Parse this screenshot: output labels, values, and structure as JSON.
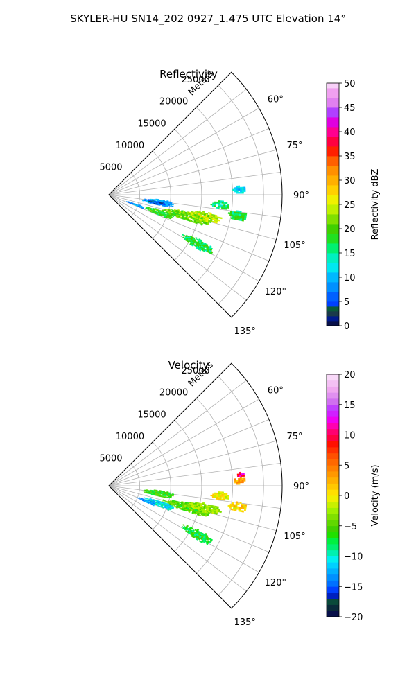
{
  "figure": {
    "suptitle": "SKYLER-HU  SN14_202  0927_1.475 UTC Elevation 14°"
  },
  "chart_data": [
    {
      "type": "heatmap",
      "title": "Reflectivity",
      "projection": "polar-sector",
      "radial_axis_label": "Meters",
      "radial_ticks": [
        "5000",
        "10000",
        "15000",
        "20000",
        "25000"
      ],
      "radial_tick_values": [
        5000,
        10000,
        15000,
        20000,
        25000
      ],
      "rlim": [
        0,
        28000
      ],
      "azimuth_ticks": [
        "60°",
        "75°",
        "90°",
        "105°",
        "120°",
        "135°"
      ],
      "azimuth_tick_values": [
        60,
        75,
        90,
        105,
        120,
        135
      ],
      "azimuth_range_deg": [
        45,
        135
      ],
      "grid": true,
      "colorbar": {
        "label": "Reflectivity dBZ",
        "min": 0,
        "max": 50,
        "ticks": [
          0,
          5,
          10,
          15,
          20,
          25,
          30,
          35,
          40,
          45,
          50
        ],
        "tick_labels": [
          "0",
          "5",
          "10",
          "15",
          "20",
          "25",
          "30",
          "35",
          "40",
          "45",
          "50"
        ]
      },
      "echo_regions": [
        {
          "az": [
            95,
            102
          ],
          "r": [
            5500,
            10500
          ],
          "value": 9
        },
        {
          "az": [
            97,
            101
          ],
          "r": [
            6500,
            9000
          ],
          "value": 5
        },
        {
          "az": [
            102,
            108
          ],
          "r": [
            9000,
            17000
          ],
          "value": 21
        },
        {
          "az": [
            106,
            112
          ],
          "r": [
            6000,
            11000
          ],
          "value": 19
        },
        {
          "az": [
            100,
            105
          ],
          "r": [
            13000,
            18500
          ],
          "value": 24
        },
        {
          "az": [
            116,
            121
          ],
          "r": [
            13500,
            19000
          ],
          "value": 17
        },
        {
          "az": [
            93,
            97
          ],
          "r": [
            16500,
            19500
          ],
          "value": 16
        },
        {
          "az": [
            97,
            101
          ],
          "r": [
            19500,
            22500
          ],
          "value": 17
        },
        {
          "az": [
            86,
            89
          ],
          "r": [
            20000,
            22000
          ],
          "value": 12
        },
        {
          "az": [
            108,
            112
          ],
          "r": [
            3000,
            6000
          ],
          "value": 8
        }
      ]
    },
    {
      "type": "heatmap",
      "title": "Velocity",
      "projection": "polar-sector",
      "radial_axis_label": "Meters",
      "radial_ticks": [
        "5000",
        "10000",
        "15000",
        "20000",
        "25000"
      ],
      "radial_tick_values": [
        5000,
        10000,
        15000,
        20000,
        25000
      ],
      "rlim": [
        0,
        28000
      ],
      "azimuth_ticks": [
        "60°",
        "75°",
        "90°",
        "105°",
        "120°",
        "135°"
      ],
      "azimuth_tick_values": [
        60,
        75,
        90,
        105,
        120,
        135
      ],
      "azimuth_range_deg": [
        45,
        135
      ],
      "grid": true,
      "colorbar": {
        "label": "Velocity (m/s)",
        "min": -20,
        "max": 20,
        "ticks": [
          -20,
          -15,
          -10,
          -5,
          0,
          5,
          10,
          15,
          20
        ],
        "tick_labels": [
          "−20",
          "−15",
          "−10",
          "−5",
          "0",
          "5",
          "10",
          "15",
          "20"
        ]
      },
      "echo_regions": [
        {
          "az": [
            95,
            102
          ],
          "r": [
            5500,
            10500
          ],
          "value": -6
        },
        {
          "az": [
            102,
            108
          ],
          "r": [
            9000,
            17000
          ],
          "value": -5
        },
        {
          "az": [
            106,
            112
          ],
          "r": [
            6000,
            11000
          ],
          "value": -11
        },
        {
          "az": [
            110,
            114
          ],
          "r": [
            5000,
            8000
          ],
          "value": -13
        },
        {
          "az": [
            100,
            105
          ],
          "r": [
            13000,
            18500
          ],
          "value": -3
        },
        {
          "az": [
            116,
            121
          ],
          "r": [
            13500,
            19000
          ],
          "value": -7
        },
        {
          "az": [
            93,
            97
          ],
          "r": [
            16500,
            19500
          ],
          "value": 0
        },
        {
          "az": [
            97,
            101
          ],
          "r": [
            19500,
            22500
          ],
          "value": 1
        },
        {
          "az": [
            86,
            89
          ],
          "r": [
            20000,
            22000
          ],
          "value": 3
        },
        {
          "az": [
            84,
            86
          ],
          "r": [
            20500,
            22000
          ],
          "value": 10
        }
      ]
    }
  ]
}
